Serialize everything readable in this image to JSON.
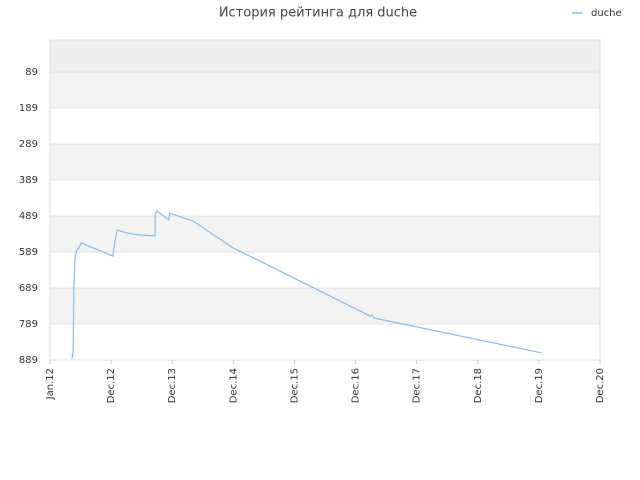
{
  "chart_data": {
    "type": "line",
    "title": "История рейтинга для duche",
    "series": [
      {
        "name": "duche",
        "color": "#88bbee",
        "x": [
          0.36,
          0.38,
          0.39,
          0.41,
          0.44,
          0.47,
          0.51,
          1.03,
          1.06,
          1.1,
          1.26,
          1.47,
          1.72,
          1.72,
          1.75,
          1.94,
          1.96,
          2.34,
          3.0,
          3.73,
          3.76,
          5.24,
          5.27,
          5.29,
          8.04
        ],
        "values": [
          886,
          861,
          694,
          606,
          583,
          578,
          564,
          600,
          561,
          528,
          536,
          542,
          544,
          486,
          475,
          500,
          481,
          503,
          578,
          639,
          642,
          767,
          764,
          772,
          869
        ]
      }
    ],
    "ylim": [
      889,
      0
    ],
    "yticks": [
      89,
      189,
      289,
      389,
      489,
      589,
      689,
      789,
      889
    ],
    "xlim": [
      0,
      9
    ],
    "xticks": [
      {
        "value": 0,
        "label": "Jan.12"
      },
      {
        "value": 1,
        "label": "Dec.12"
      },
      {
        "value": 2,
        "label": "Dec.13"
      },
      {
        "value": 3,
        "label": "Dec.14"
      },
      {
        "value": 4,
        "label": "Dec.15"
      },
      {
        "value": 5,
        "label": "Dec.16"
      },
      {
        "value": 6,
        "label": "Dec.17"
      },
      {
        "value": 7,
        "label": "Dec.18"
      },
      {
        "value": 8,
        "label": "Dec.19"
      },
      {
        "value": 9,
        "label": "Dec.20"
      }
    ],
    "grid": true,
    "legend": "top-right"
  }
}
